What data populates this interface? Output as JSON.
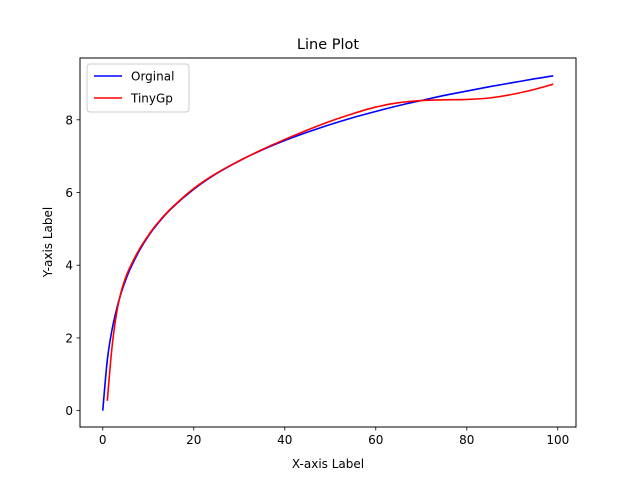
{
  "chart_data": {
    "type": "line",
    "title": "Line Plot",
    "xlabel": "X-axis Label",
    "ylabel": "Y-axis Label",
    "xlim": [
      -5,
      104
    ],
    "ylim": [
      -0.45,
      9.7
    ],
    "xticks": [
      0,
      20,
      40,
      60,
      80,
      100
    ],
    "yticks": [
      0,
      2,
      4,
      6,
      8
    ],
    "grid": false,
    "legend_position": "upper-left",
    "series": [
      {
        "name": "Orginal",
        "color": "#0000ff",
        "x": [
          0,
          1,
          2,
          3,
          4,
          5,
          6,
          8,
          10,
          12,
          15,
          20,
          25,
          30,
          35,
          40,
          45,
          50,
          55,
          60,
          65,
          70,
          75,
          80,
          85,
          90,
          95,
          99
        ],
        "y": [
          0.0,
          1.39,
          2.2,
          2.77,
          3.22,
          3.58,
          3.89,
          4.39,
          4.8,
          5.13,
          5.55,
          6.09,
          6.52,
          6.87,
          7.17,
          7.43,
          7.66,
          7.87,
          8.06,
          8.23,
          8.39,
          8.53,
          8.67,
          8.79,
          8.91,
          9.02,
          9.13,
          9.21
        ]
      },
      {
        "name": "TinyGp",
        "color": "#ff0000",
        "x": [
          1,
          2,
          3,
          4,
          5,
          6,
          8,
          10,
          12,
          15,
          20,
          25,
          30,
          35,
          40,
          45,
          50,
          55,
          60,
          65,
          70,
          75,
          80,
          85,
          90,
          95,
          99
        ],
        "y": [
          0.27,
          1.7,
          2.65,
          3.25,
          3.65,
          3.95,
          4.43,
          4.82,
          5.15,
          5.56,
          6.11,
          6.53,
          6.87,
          7.18,
          7.46,
          7.72,
          7.96,
          8.17,
          8.35,
          8.47,
          8.53,
          8.55,
          8.56,
          8.6,
          8.7,
          8.84,
          8.98
        ]
      }
    ]
  }
}
